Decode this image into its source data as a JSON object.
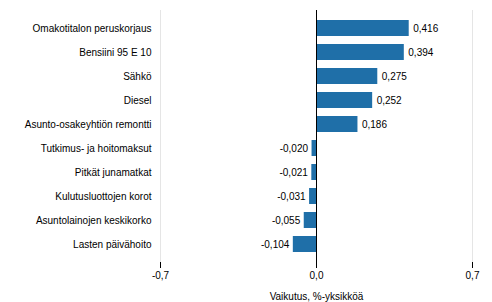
{
  "chart_data": {
    "type": "bar",
    "orientation": "horizontal",
    "categories": [
      "Lasten päivähoito",
      "Asuntolainojen keskikorko",
      "Kulutusluottojen korot",
      "Pitkät junamatkat",
      "Tutkimus- ja hoitomaksut",
      "Asunto-osakeyhtiön remontti",
      "Diesel",
      "Sähkö",
      "Bensiini 95 E 10",
      "Omakotitalon peruskorjaus"
    ],
    "values": [
      -0.104,
      -0.055,
      -0.031,
      -0.021,
      -0.02,
      0.186,
      0.252,
      0.275,
      0.394,
      0.416
    ],
    "value_labels": [
      "-0,104",
      "-0,055",
      "-0,031",
      "-0,021",
      "-0,020",
      "0,186",
      "0,252",
      "0,275",
      "0,394",
      "0,416"
    ],
    "data_labels": true,
    "color": "#1f6fa8",
    "xlim": [
      -0.7,
      0.7
    ],
    "xticks": [
      {
        "value": -0.7,
        "label": "-0,7"
      },
      {
        "value": 0.0,
        "label": "0,0"
      },
      {
        "value": 0.7,
        "label": "0,7"
      }
    ],
    "xlabel": "Vaikutus, %-yksikköä",
    "grid": true
  }
}
